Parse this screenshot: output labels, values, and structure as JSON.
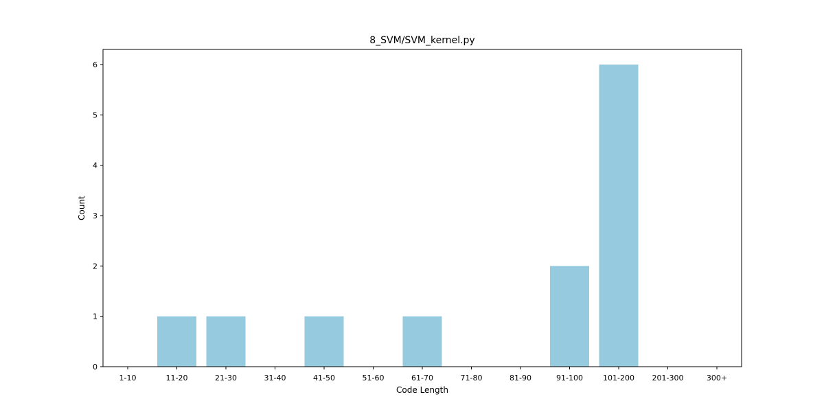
{
  "chart_data": {
    "type": "bar",
    "title": "8_SVM/SVM_kernel.py",
    "xlabel": "Code Length",
    "ylabel": "Count",
    "categories": [
      "1-10",
      "11-20",
      "21-30",
      "31-40",
      "41-50",
      "51-60",
      "61-70",
      "71-80",
      "81-90",
      "91-100",
      "101-200",
      "201-300",
      "300+"
    ],
    "values": [
      0,
      1,
      1,
      0,
      1,
      0,
      1,
      0,
      0,
      2,
      6,
      0,
      0
    ],
    "ylim": [
      0,
      6.3
    ],
    "yticks": [
      0,
      1,
      2,
      3,
      4,
      5,
      6
    ],
    "grid": false,
    "bar_color": "#96cade"
  }
}
